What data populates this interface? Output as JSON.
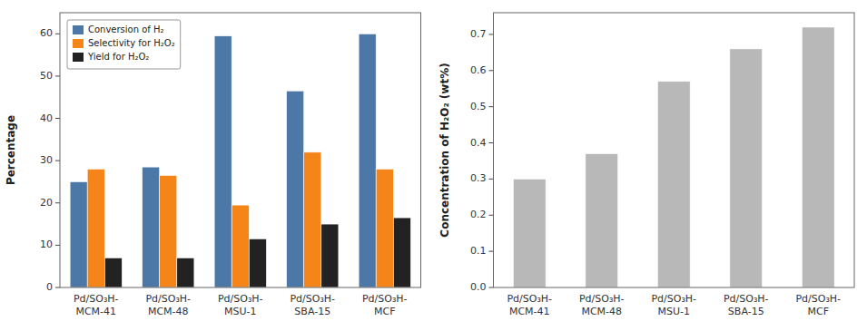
{
  "chart_data": [
    {
      "type": "bar",
      "categories": [
        "Pd/SO₃H-\nMCM-41",
        "Pd/SO₃H-\nMCM-48",
        "Pd/SO₃H-\nMSU-1",
        "Pd/SO₃H-\nSBA-15",
        "Pd/SO₃H-\nMCF"
      ],
      "series": [
        {
          "name": "Conversion of H₂",
          "color": "#4c78a8",
          "values": [
            25,
            28.5,
            59.5,
            46.5,
            60
          ]
        },
        {
          "name": "Selectivity for H₂O₂",
          "color": "#f58518",
          "values": [
            28,
            26.5,
            19.5,
            32,
            28
          ]
        },
        {
          "name": "Yield for H₂O₂",
          "color": "#222222",
          "values": [
            7,
            7,
            11.5,
            15,
            16.5
          ]
        }
      ],
      "ylabel": "Percentage",
      "ylim": [
        0,
        65
      ],
      "yticks": [
        0,
        10,
        20,
        30,
        40,
        50,
        60
      ],
      "legend": "upper left",
      "grid": false
    },
    {
      "type": "bar",
      "categories": [
        "Pd/SO₃H-\nMCM-41",
        "Pd/SO₃H-\nMCM-48",
        "Pd/SO₃H-\nMSU-1",
        "Pd/SO₃H-\nSBA-15",
        "Pd/SO₃H-\nMCF"
      ],
      "values": [
        0.3,
        0.37,
        0.57,
        0.66,
        0.72
      ],
      "color": "#b8b8b8",
      "ylabel": "Concentration of H₂O₂ (wt%)",
      "ylim": [
        0,
        0.76
      ],
      "yticks": [
        {
          "value": 0,
          "label": "0.0"
        },
        0.1,
        0.2,
        0.3,
        0.4,
        0.5,
        0.6,
        0.7
      ],
      "grid": false
    }
  ]
}
